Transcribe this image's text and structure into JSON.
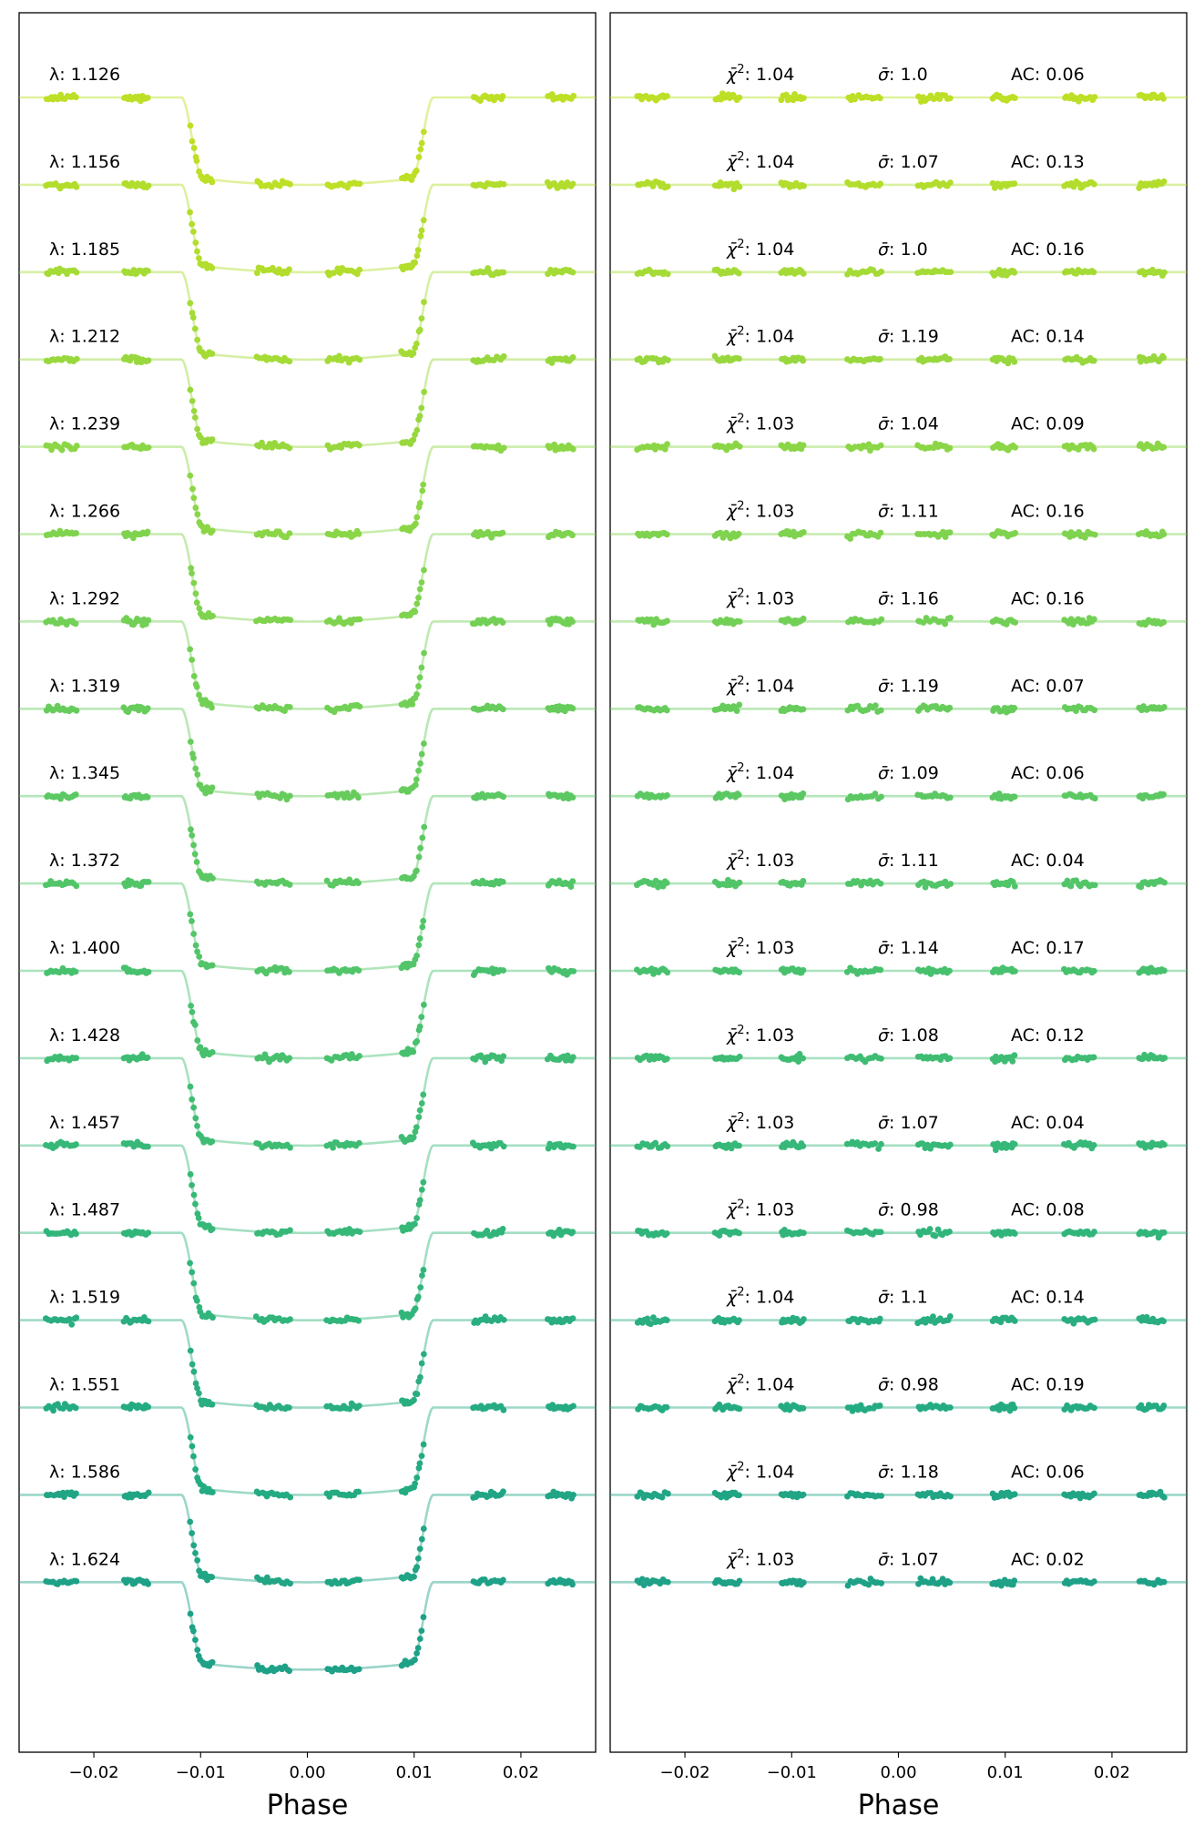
{
  "chart_data": [
    {
      "type": "line",
      "panel": "left",
      "xlabel": "Phase",
      "xlim": [
        -0.027,
        0.027
      ],
      "x_ticks": [
        "−0.02",
        "−0.01",
        "0.00",
        "0.01",
        "0.02"
      ],
      "x_tick_values": [
        -0.02,
        -0.01,
        0.0,
        0.01,
        0.02
      ],
      "transit": {
        "ingress_start": -0.0118,
        "ingress_end": -0.0098,
        "egress_start": 0.0098,
        "egress_end": 0.0118
      },
      "data_windows": [
        [
          -0.0245,
          -0.0215
        ],
        [
          -0.0172,
          -0.0148
        ],
        [
          -0.011,
          -0.0088
        ],
        [
          -0.0048,
          -0.0015
        ],
        [
          0.0018,
          0.005
        ],
        [
          0.0088,
          0.011
        ],
        [
          0.0155,
          0.0185
        ],
        [
          0.0225,
          0.025
        ]
      ],
      "series": [
        {
          "name": "λ: 1.126",
          "color": "#bddf26"
        },
        {
          "name": "λ: 1.156",
          "color": "#b2dd2c"
        },
        {
          "name": "λ: 1.185",
          "color": "#a5db36"
        },
        {
          "name": "λ: 1.212",
          "color": "#98d83e"
        },
        {
          "name": "λ: 1.239",
          "color": "#8bd646"
        },
        {
          "name": "λ: 1.266",
          "color": "#7fd34e"
        },
        {
          "name": "λ: 1.292",
          "color": "#73d056"
        },
        {
          "name": "λ: 1.319",
          "color": "#67cc5c"
        },
        {
          "name": "λ: 1.345",
          "color": "#5cc863"
        },
        {
          "name": "λ: 1.372",
          "color": "#52c569"
        },
        {
          "name": "λ: 1.400",
          "color": "#48c16e"
        },
        {
          "name": "λ: 1.428",
          "color": "#3fbc73"
        },
        {
          "name": "λ: 1.457",
          "color": "#37b878"
        },
        {
          "name": "λ: 1.487",
          "color": "#31b57b"
        },
        {
          "name": "λ: 1.519",
          "color": "#2aae80"
        },
        {
          "name": "λ: 1.551",
          "color": "#25ab82"
        },
        {
          "name": "λ: 1.586",
          "color": "#21a585"
        },
        {
          "name": "λ: 1.624",
          "color": "#1fa187"
        }
      ]
    },
    {
      "type": "scatter",
      "panel": "right",
      "xlabel": "Phase",
      "xlim": [
        -0.027,
        0.027
      ],
      "x_ticks": [
        "−0.02",
        "−0.01",
        "0.00",
        "0.01",
        "0.02"
      ],
      "x_tick_values": [
        -0.02,
        -0.01,
        0.0,
        0.01,
        0.02
      ],
      "data_windows": [
        [
          -0.0245,
          -0.0215
        ],
        [
          -0.0172,
          -0.0148
        ],
        [
          -0.011,
          -0.0088
        ],
        [
          -0.0048,
          -0.0015
        ],
        [
          0.0018,
          0.005
        ],
        [
          0.0088,
          0.011
        ],
        [
          0.0155,
          0.0185
        ],
        [
          0.0225,
          0.025
        ]
      ],
      "rows": [
        {
          "chi2": "1.04",
          "sigma": "1.0",
          "ac": "0.06"
        },
        {
          "chi2": "1.04",
          "sigma": "1.07",
          "ac": "0.13"
        },
        {
          "chi2": "1.04",
          "sigma": "1.0",
          "ac": "0.16"
        },
        {
          "chi2": "1.04",
          "sigma": "1.19",
          "ac": "0.14"
        },
        {
          "chi2": "1.03",
          "sigma": "1.04",
          "ac": "0.09"
        },
        {
          "chi2": "1.03",
          "sigma": "1.11",
          "ac": "0.16"
        },
        {
          "chi2": "1.03",
          "sigma": "1.16",
          "ac": "0.16"
        },
        {
          "chi2": "1.04",
          "sigma": "1.19",
          "ac": "0.07"
        },
        {
          "chi2": "1.04",
          "sigma": "1.09",
          "ac": "0.06"
        },
        {
          "chi2": "1.03",
          "sigma": "1.11",
          "ac": "0.04"
        },
        {
          "chi2": "1.03",
          "sigma": "1.14",
          "ac": "0.17"
        },
        {
          "chi2": "1.03",
          "sigma": "1.08",
          "ac": "0.12"
        },
        {
          "chi2": "1.03",
          "sigma": "1.07",
          "ac": "0.04"
        },
        {
          "chi2": "1.03",
          "sigma": "0.98",
          "ac": "0.08"
        },
        {
          "chi2": "1.04",
          "sigma": "1.1",
          "ac": "0.14"
        },
        {
          "chi2": "1.04",
          "sigma": "0.98",
          "ac": "0.19"
        },
        {
          "chi2": "1.04",
          "sigma": "1.18",
          "ac": "0.06"
        },
        {
          "chi2": "1.03",
          "sigma": "1.07",
          "ac": "0.02"
        }
      ]
    }
  ]
}
